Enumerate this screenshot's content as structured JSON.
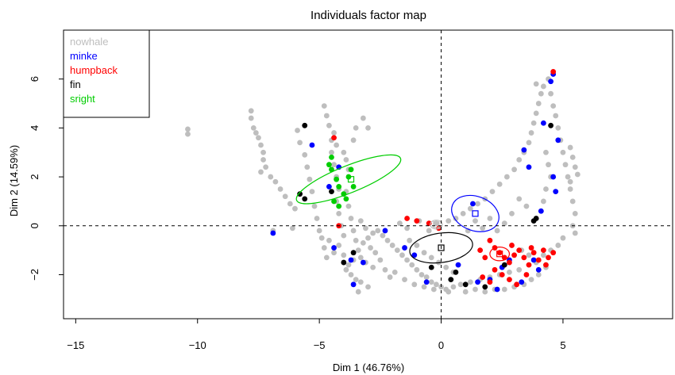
{
  "chart_data": {
    "type": "scatter",
    "title": "Individuals factor map",
    "xlabel": "Dim 1 (46.76%)",
    "ylabel": "Dim 2 (14.59%)",
    "xlim": [
      -15.5,
      9.5
    ],
    "ylim": [
      -3.8,
      8.0
    ],
    "x_ticks": [
      -15,
      -10,
      -5,
      0,
      5
    ],
    "y_ticks": [
      -2,
      0,
      2,
      4,
      6
    ],
    "reference_lines": {
      "x": 0,
      "y": 0,
      "style": "dashed"
    },
    "legend_position": "top-left",
    "legend": [
      {
        "label": "nowhale",
        "color": "#bebebe"
      },
      {
        "label": "minke",
        "color": "#0000ff"
      },
      {
        "label": "humpback",
        "color": "#ff0000"
      },
      {
        "label": "fin",
        "color": "#000000"
      },
      {
        "label": "sright",
        "color": "#00cd00"
      }
    ],
    "series": [
      {
        "name": "nowhale",
        "color": "#bebebe",
        "points": [
          [
            -10.4,
            3.95
          ],
          [
            -10.4,
            3.75
          ],
          [
            -7.8,
            4.7
          ],
          [
            -7.8,
            4.4
          ],
          [
            -7.7,
            4.0
          ],
          [
            -7.6,
            3.8
          ],
          [
            -7.5,
            3.6
          ],
          [
            -7.4,
            3.3
          ],
          [
            -7.3,
            3.0
          ],
          [
            -7.3,
            2.7
          ],
          [
            -7.2,
            2.4
          ],
          [
            -7.4,
            2.2
          ],
          [
            -7.0,
            2.0
          ],
          [
            -6.8,
            1.8
          ],
          [
            -6.6,
            1.5
          ],
          [
            -6.4,
            1.2
          ],
          [
            -6.2,
            0.9
          ],
          [
            -6.0,
            0.7
          ],
          [
            -6.9,
            -0.2
          ],
          [
            -6.1,
            -0.1
          ],
          [
            -5.9,
            3.9
          ],
          [
            -5.8,
            3.4
          ],
          [
            -5.6,
            2.9
          ],
          [
            -5.5,
            2.4
          ],
          [
            -5.4,
            1.9
          ],
          [
            -5.3,
            1.4
          ],
          [
            -5.2,
            0.8
          ],
          [
            -5.1,
            0.3
          ],
          [
            -5.0,
            -0.2
          ],
          [
            -4.9,
            -0.5
          ],
          [
            -4.8,
            4.9
          ],
          [
            -4.7,
            4.5
          ],
          [
            -4.6,
            4.1
          ],
          [
            -4.5,
            3.5
          ],
          [
            -4.5,
            3.0
          ],
          [
            -4.4,
            2.5
          ],
          [
            -4.3,
            2.0
          ],
          [
            -4.2,
            1.5
          ],
          [
            -4.3,
            1.0
          ],
          [
            -4.2,
            0.5
          ],
          [
            -4.1,
            0.0
          ],
          [
            -4.0,
            -0.4
          ],
          [
            -4.4,
            3.8
          ],
          [
            -4.3,
            3.3
          ],
          [
            -4.0,
            3.0
          ],
          [
            -3.9,
            2.7
          ],
          [
            -3.8,
            2.3
          ],
          [
            -3.6,
            3.5
          ],
          [
            -3.5,
            4.0
          ],
          [
            -3.2,
            4.4
          ],
          [
            -3.0,
            4.0
          ],
          [
            -3.9,
            1.4
          ],
          [
            -3.8,
            0.8
          ],
          [
            -3.7,
            0.3
          ],
          [
            -3.6,
            -0.2
          ],
          [
            -3.5,
            -0.6
          ],
          [
            -3.4,
            -1.0
          ],
          [
            -3.3,
            -1.3
          ],
          [
            -3.6,
            -1.4
          ],
          [
            -3.8,
            -1.6
          ],
          [
            -3.9,
            -1.8
          ],
          [
            -3.7,
            -2.0
          ],
          [
            -3.5,
            -2.2
          ],
          [
            -3.3,
            -2.3
          ],
          [
            -3.2,
            -0.7
          ],
          [
            -3.0,
            -0.5
          ],
          [
            -2.8,
            -0.3
          ],
          [
            -2.6,
            -0.2
          ],
          [
            -2.4,
            -0.4
          ],
          [
            -2.2,
            -0.6
          ],
          [
            -2.0,
            -0.8
          ],
          [
            -1.8,
            -1.0
          ],
          [
            -1.6,
            -1.2
          ],
          [
            -1.4,
            -1.4
          ],
          [
            -1.2,
            -1.6
          ],
          [
            -1.0,
            -1.8
          ],
          [
            -0.8,
            -2.0
          ],
          [
            -0.6,
            -2.1
          ],
          [
            -0.4,
            -2.3
          ],
          [
            -0.2,
            -2.4
          ],
          [
            0.0,
            -2.5
          ],
          [
            0.2,
            -2.6
          ],
          [
            0.5,
            -2.5
          ],
          [
            0.8,
            -2.4
          ],
          [
            1.2,
            -2.3
          ],
          [
            1.6,
            -2.2
          ],
          [
            2.0,
            -2.1
          ],
          [
            2.4,
            -2.0
          ],
          [
            2.8,
            -1.9
          ],
          [
            3.2,
            -1.8
          ],
          [
            -2.7,
            -1.1
          ],
          [
            -2.9,
            -0.9
          ],
          [
            -3.1,
            -1.5
          ],
          [
            -2.8,
            -1.7
          ],
          [
            -3.0,
            -2.5
          ],
          [
            -3.4,
            -2.7
          ],
          [
            -1.9,
            -1.9
          ],
          [
            -1.5,
            -2.2
          ],
          [
            -1.1,
            -2.4
          ],
          [
            -0.7,
            -2.5
          ],
          [
            -0.3,
            -2.6
          ],
          [
            0.3,
            -2.7
          ],
          [
            -1.7,
            0.1
          ],
          [
            -1.4,
            -0.1
          ],
          [
            -0.9,
            0.2
          ],
          [
            -0.5,
            -0.2
          ],
          [
            -0.2,
            0.1
          ],
          [
            0.3,
            0.2
          ],
          [
            0.6,
            0.3
          ],
          [
            0.9,
            0.5
          ],
          [
            1.2,
            0.7
          ],
          [
            1.5,
            0.9
          ],
          [
            1.8,
            1.1
          ],
          [
            2.1,
            1.4
          ],
          [
            2.4,
            1.7
          ],
          [
            2.7,
            2.0
          ],
          [
            3.0,
            2.3
          ],
          [
            3.2,
            2.7
          ],
          [
            3.4,
            3.0
          ],
          [
            3.6,
            3.4
          ],
          [
            3.7,
            3.8
          ],
          [
            3.8,
            4.2
          ],
          [
            3.9,
            4.6
          ],
          [
            4.0,
            5.0
          ],
          [
            4.1,
            5.4
          ],
          [
            3.9,
            5.8
          ],
          [
            4.2,
            5.7
          ],
          [
            4.4,
            6.0
          ],
          [
            4.5,
            5.4
          ],
          [
            4.6,
            4.9
          ],
          [
            4.7,
            4.5
          ],
          [
            4.8,
            4.0
          ],
          [
            4.9,
            3.5
          ],
          [
            5.0,
            3.0
          ],
          [
            5.1,
            2.5
          ],
          [
            5.2,
            2.0
          ],
          [
            5.3,
            1.5
          ],
          [
            5.4,
            1.0
          ],
          [
            5.5,
            0.5
          ],
          [
            5.4,
            0.0
          ],
          [
            5.5,
            -0.3
          ],
          [
            5.3,
            3.2
          ],
          [
            5.4,
            2.8
          ],
          [
            5.5,
            2.4
          ],
          [
            5.6,
            2.1
          ],
          [
            5.3,
            1.8
          ],
          [
            4.3,
            3.0
          ],
          [
            4.4,
            2.5
          ],
          [
            4.5,
            2.0
          ],
          [
            4.3,
            1.5
          ],
          [
            4.2,
            1.0
          ],
          [
            4.1,
            0.6
          ],
          [
            3.5,
            0.8
          ],
          [
            3.2,
            1.1
          ],
          [
            2.9,
            0.5
          ],
          [
            2.6,
            0.1
          ],
          [
            2.3,
            -0.2
          ],
          [
            2.0,
            0.3
          ],
          [
            1.7,
            -0.1
          ],
          [
            1.4,
            0.2
          ],
          [
            1.1,
            -0.2
          ],
          [
            3.3,
            -1.0
          ],
          [
            3.6,
            -1.2
          ],
          [
            3.9,
            -1.5
          ],
          [
            4.2,
            -1.2
          ],
          [
            4.5,
            -1.0
          ],
          [
            4.8,
            -0.8
          ],
          [
            5.0,
            -0.5
          ],
          [
            4.3,
            -1.7
          ],
          [
            4.0,
            -2.0
          ],
          [
            3.7,
            -2.2
          ],
          [
            3.4,
            -2.4
          ],
          [
            3.0,
            -2.5
          ],
          [
            2.6,
            -2.6
          ],
          [
            2.2,
            -2.6
          ],
          [
            1.8,
            -2.7
          ],
          [
            1.4,
            -2.6
          ],
          [
            1.0,
            -2.7
          ],
          [
            -3.1,
            -0.1
          ],
          [
            -3.3,
            0.2
          ],
          [
            -2.5,
            -1.4
          ],
          [
            -2.3,
            -1.8
          ],
          [
            -2.1,
            -2.1
          ],
          [
            -1.3,
            -0.6
          ],
          [
            -1.0,
            -0.8
          ],
          [
            -0.7,
            -1.1
          ],
          [
            -0.4,
            -1.3
          ],
          [
            -0.1,
            -1.5
          ],
          [
            0.2,
            -1.7
          ],
          [
            0.5,
            -1.9
          ],
          [
            -4.2,
            -0.8
          ],
          [
            -4.4,
            -1.1
          ],
          [
            -4.6,
            -0.6
          ],
          [
            -4.8,
            -0.9
          ],
          [
            -4.7,
            -1.3
          ],
          [
            -4.0,
            -1.2
          ]
        ]
      },
      {
        "name": "minke",
        "color": "#0000ff",
        "points": [
          [
            -6.9,
            -0.3
          ],
          [
            -4.6,
            1.6
          ],
          [
            -4.4,
            -0.9
          ],
          [
            -3.7,
            -1.4
          ],
          [
            -3.2,
            -1.5
          ],
          [
            -3.6,
            -2.4
          ],
          [
            -2.3,
            -0.2
          ],
          [
            -1.5,
            -0.9
          ],
          [
            -1.1,
            -1.2
          ],
          [
            -0.6,
            -2.3
          ],
          [
            1.5,
            -2.3
          ],
          [
            2.0,
            -2.2
          ],
          [
            2.8,
            -1.4
          ],
          [
            2.3,
            -2.6
          ],
          [
            3.3,
            -2.3
          ],
          [
            3.8,
            -1.4
          ],
          [
            4.5,
            5.9
          ],
          [
            4.6,
            6.2
          ],
          [
            4.2,
            4.2
          ],
          [
            4.6,
            2.0
          ],
          [
            4.8,
            3.5
          ],
          [
            4.1,
            0.6
          ],
          [
            4.7,
            1.4
          ],
          [
            3.4,
            3.1
          ],
          [
            3.6,
            2.4
          ],
          [
            1.3,
            0.9
          ],
          [
            2.5,
            -1.7
          ],
          [
            4.0,
            -1.8
          ],
          [
            -4.2,
            2.4
          ],
          [
            -5.3,
            3.3
          ],
          [
            0.7,
            -1.6
          ]
        ]
      },
      {
        "name": "humpback",
        "color": "#ff0000",
        "points": [
          [
            -4.4,
            3.6
          ],
          [
            -4.2,
            0.0
          ],
          [
            -1.4,
            0.3
          ],
          [
            -1.0,
            0.2
          ],
          [
            -0.5,
            0.1
          ],
          [
            -0.1,
            -0.1
          ],
          [
            2.0,
            -0.6
          ],
          [
            2.2,
            -0.9
          ],
          [
            2.4,
            -1.1
          ],
          [
            2.6,
            -1.3
          ],
          [
            2.8,
            -1.5
          ],
          [
            3.0,
            -1.2
          ],
          [
            3.2,
            -1.0
          ],
          [
            3.4,
            -1.3
          ],
          [
            3.6,
            -1.6
          ],
          [
            3.8,
            -1.1
          ],
          [
            4.0,
            -1.4
          ],
          [
            4.2,
            -1.0
          ],
          [
            4.4,
            -1.3
          ],
          [
            4.6,
            -1.1
          ],
          [
            2.2,
            -1.8
          ],
          [
            2.5,
            -2.0
          ],
          [
            2.8,
            -2.2
          ],
          [
            3.1,
            -2.4
          ],
          [
            2.0,
            -2.3
          ],
          [
            1.7,
            -2.1
          ],
          [
            3.5,
            -2.0
          ],
          [
            4.6,
            6.3
          ],
          [
            1.6,
            -1.0
          ],
          [
            1.8,
            -1.3
          ],
          [
            2.9,
            -0.8
          ],
          [
            3.7,
            -0.9
          ],
          [
            4.3,
            -1.6
          ]
        ]
      },
      {
        "name": "fin",
        "color": "#000000",
        "points": [
          [
            -5.8,
            1.3
          ],
          [
            -5.6,
            1.1
          ],
          [
            -5.6,
            4.1
          ],
          [
            -4.5,
            1.4
          ],
          [
            -3.6,
            -1.1
          ],
          [
            -0.4,
            -1.7
          ],
          [
            0.4,
            -2.2
          ],
          [
            0.6,
            -1.9
          ],
          [
            1.0,
            -2.4
          ],
          [
            1.8,
            -2.5
          ],
          [
            3.8,
            0.2
          ],
          [
            3.9,
            0.3
          ],
          [
            4.5,
            4.1
          ],
          [
            -4.0,
            -1.5
          ],
          [
            2.6,
            -1.6
          ]
        ]
      },
      {
        "name": "sright",
        "color": "#00cd00",
        "points": [
          [
            -4.6,
            2.5
          ],
          [
            -4.5,
            2.3
          ],
          [
            -4.3,
            1.9
          ],
          [
            -4.2,
            1.6
          ],
          [
            -4.0,
            1.3
          ],
          [
            -4.4,
            1.0
          ],
          [
            -4.2,
            0.8
          ],
          [
            -3.8,
            2.0
          ],
          [
            -3.6,
            1.6
          ],
          [
            -3.9,
            1.1
          ],
          [
            -4.5,
            2.8
          ],
          [
            -3.7,
            2.3
          ]
        ]
      }
    ],
    "barycenters": [
      {
        "name": "minke",
        "color": "#0000ff",
        "x": 1.4,
        "y": 0.5
      },
      {
        "name": "humpback",
        "color": "#ff0000",
        "x": 2.4,
        "y": -1.15
      },
      {
        "name": "fin",
        "color": "#000000",
        "x": 0.0,
        "y": -0.9
      },
      {
        "name": "sright",
        "color": "#00cd00",
        "x": -3.7,
        "y": 1.9
      },
      {
        "name": "nowhale",
        "color": "#bebebe",
        "x": -0.2,
        "y": 0.05
      }
    ],
    "ellipses": [
      {
        "name": "sright",
        "color": "#00cd00",
        "cx": -3.8,
        "cy": 1.9,
        "rx": 2.3,
        "ry": 0.55,
        "angle_deg": -22
      },
      {
        "name": "minke",
        "color": "#0000ff",
        "cx": 1.4,
        "cy": 0.5,
        "rx": 1.0,
        "ry": 0.7,
        "angle_deg": 20
      },
      {
        "name": "fin",
        "color": "#000000",
        "cx": 0.0,
        "cy": -0.9,
        "rx": 1.3,
        "ry": 0.6,
        "angle_deg": -8
      },
      {
        "name": "humpback",
        "color": "#ff0000",
        "cx": 2.4,
        "cy": -1.15,
        "rx": 0.4,
        "ry": 0.28,
        "angle_deg": 0
      },
      {
        "name": "nowhale",
        "color": "#bebebe",
        "cx": -0.2,
        "cy": 0.05,
        "rx": 0.25,
        "ry": 0.18,
        "angle_deg": 0
      }
    ]
  }
}
